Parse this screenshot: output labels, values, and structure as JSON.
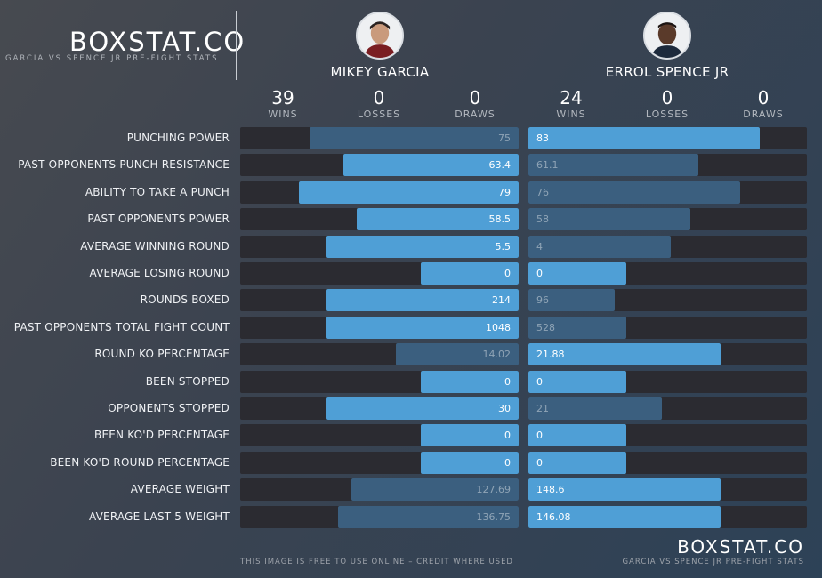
{
  "brand": {
    "logo": "BOXSTAT.CO",
    "subtitle": "GARCIA VS SPENCE JR PRE-FIGHT STATS"
  },
  "footer": {
    "note": "THIS IMAGE IS FREE TO USE ONLINE – CREDIT WHERE USED",
    "logo": "BOXSTAT.CO",
    "subtitle": "GARCIA VS SPENCE JR PRE-FIGHT STATS"
  },
  "fighters": [
    {
      "name": "MIKEY GARCIA",
      "record": [
        {
          "value": "39",
          "label": "WINS"
        },
        {
          "value": "0",
          "label": "LOSSES"
        },
        {
          "value": "0",
          "label": "DRAWS"
        }
      ]
    },
    {
      "name": "ERROL SPENCE JR",
      "record": [
        {
          "value": "24",
          "label": "WINS"
        },
        {
          "value": "0",
          "label": "LOSSES"
        },
        {
          "value": "0",
          "label": "DRAWS"
        }
      ]
    }
  ],
  "colors": {
    "winner_bar": "#4f9fd6",
    "loser_bar": "#3b5f7f",
    "track": "#2b2b31"
  },
  "chart_data": {
    "type": "bar",
    "orientation": "horizontal-diverging",
    "series": [
      {
        "name": "MIKEY GARCIA",
        "values": [
          75,
          63.4,
          79,
          58.5,
          5.5,
          0,
          214,
          1048,
          14.02,
          0,
          30,
          0,
          0,
          127.69,
          136.75
        ],
        "labels": [
          "75",
          "63.4",
          "79",
          "58.5",
          "5.5",
          "0",
          "214",
          "1048",
          "14.02",
          "0",
          "30",
          "0",
          "0",
          "127.69",
          "136.75"
        ],
        "fill_fraction": [
          0.75,
          0.63,
          0.79,
          0.58,
          0.69,
          0.35,
          0.69,
          0.69,
          0.44,
          0.35,
          0.69,
          0.35,
          0.35,
          0.6,
          0.65
        ],
        "highlighted": [
          false,
          true,
          true,
          true,
          true,
          true,
          true,
          true,
          false,
          true,
          true,
          true,
          true,
          false,
          false
        ]
      },
      {
        "name": "ERROL SPENCE JR",
        "values": [
          83,
          61.1,
          76,
          58,
          4,
          0,
          96,
          528,
          21.88,
          0,
          21,
          0,
          0,
          148.6,
          146.08
        ],
        "labels": [
          "83",
          "61.1",
          "76",
          "58",
          "4",
          "0",
          "96",
          "528",
          "21.88",
          "0",
          "21",
          "0",
          "0",
          "148.6",
          "146.08"
        ],
        "fill_fraction": [
          0.83,
          0.61,
          0.76,
          0.58,
          0.51,
          0.35,
          0.31,
          0.35,
          0.69,
          0.35,
          0.48,
          0.35,
          0.35,
          0.69,
          0.69
        ],
        "highlighted": [
          true,
          false,
          false,
          false,
          false,
          true,
          false,
          false,
          true,
          true,
          false,
          true,
          true,
          true,
          true
        ]
      }
    ],
    "categories": [
      "PUNCHING POWER",
      "PAST OPPONENTS PUNCH RESISTANCE",
      "ABILITY TO TAKE A PUNCH",
      "PAST OPPONENTS POWER",
      "AVERAGE WINNING ROUND",
      "AVERAGE LOSING ROUND",
      "ROUNDS BOXED",
      "PAST OPPONENTS TOTAL FIGHT COUNT",
      "ROUND KO PERCENTAGE",
      "BEEN STOPPED",
      "OPPONENTS STOPPED",
      "BEEN KO'D PERCENTAGE",
      "BEEN KO'D ROUND PERCENTAGE",
      "AVERAGE WEIGHT",
      "AVERAGE LAST 5 WEIGHT"
    ],
    "legend": "none",
    "grid": false
  }
}
